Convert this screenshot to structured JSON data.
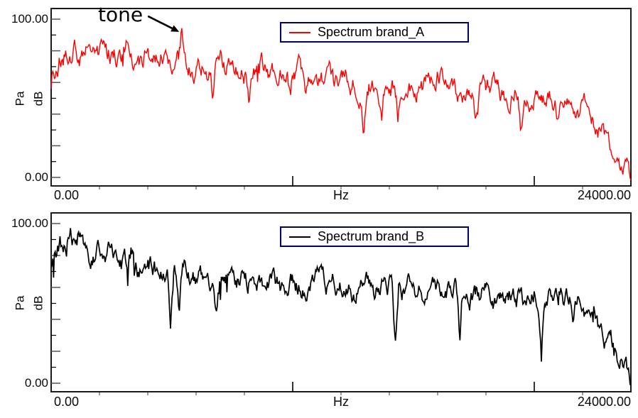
{
  "figure": {
    "background": "#ffffff",
    "text_color": "#0a0a0a"
  },
  "chart_data": [
    {
      "type": "line",
      "id": "spectrum_brand_A",
      "title": "",
      "xlabel": "Hz",
      "x_range": [
        0,
        24000
      ],
      "y_range": [
        0,
        100
      ],
      "x_minor_step": 2000,
      "x_major_step": 10000,
      "y_minor_step": 10,
      "y_major_step": 20,
      "x_tick_labels": {
        "left": "0.00",
        "right": "24000.00"
      },
      "y_tick_labels": {
        "top": "100.00",
        "bottom": "0.00"
      },
      "ylabel_units": [
        "Pa",
        "dB"
      ],
      "legend": {
        "label": "Spectrum brand_A",
        "line_color": "#fe0000",
        "border_color": "#000066"
      },
      "annotation": {
        "text": "tone",
        "target_hz": 5300,
        "target_db": 92
      },
      "series": [
        {
          "name": "Spectrum brand_A",
          "color": "#fe0000",
          "envelope": [
            [
              0,
              58
            ],
            [
              80,
              66
            ],
            [
              200,
              72
            ],
            [
              400,
              77
            ],
            [
              700,
              81
            ],
            [
              1000,
              83
            ],
            [
              1300,
              77
            ],
            [
              1600,
              81
            ],
            [
              1900,
              83
            ],
            [
              2200,
              74
            ],
            [
              2500,
              80
            ],
            [
              2800,
              74
            ],
            [
              3100,
              80
            ],
            [
              3400,
              76
            ],
            [
              3700,
              70
            ],
            [
              4000,
              77
            ],
            [
              4300,
              73
            ],
            [
              4600,
              75
            ],
            [
              4900,
              74
            ],
            [
              5150,
              78
            ],
            [
              5320,
              86
            ],
            [
              5400,
              99
            ],
            [
              5480,
              86
            ],
            [
              5650,
              77
            ],
            [
              5900,
              70
            ],
            [
              6200,
              74
            ],
            [
              6600,
              69
            ],
            [
              7000,
              74
            ],
            [
              7400,
              67
            ],
            [
              7800,
              72
            ],
            [
              8200,
              65
            ],
            [
              8600,
              70
            ],
            [
              9000,
              63
            ],
            [
              9400,
              69
            ],
            [
              9800,
              62
            ],
            [
              10300,
              67
            ],
            [
              10800,
              60
            ],
            [
              11300,
              65
            ],
            [
              11800,
              58
            ],
            [
              12300,
              63
            ],
            [
              12800,
              56
            ],
            [
              13300,
              61
            ],
            [
              13800,
              54
            ],
            [
              14300,
              59
            ],
            [
              14800,
              53
            ],
            [
              15300,
              58
            ],
            [
              15800,
              64
            ],
            [
              16100,
              70
            ],
            [
              16400,
              60
            ],
            [
              16800,
              53
            ],
            [
              17300,
              57
            ],
            [
              17800,
              51
            ],
            [
              18300,
              56
            ],
            [
              18800,
              50
            ],
            [
              19300,
              55
            ],
            [
              19800,
              49
            ],
            [
              20300,
              54
            ],
            [
              20800,
              48
            ],
            [
              21300,
              52
            ],
            [
              21800,
              47
            ],
            [
              22100,
              43
            ],
            [
              22500,
              36
            ],
            [
              22900,
              28
            ],
            [
              23300,
              19
            ],
            [
              23700,
              9
            ],
            [
              24000,
              1
            ]
          ],
          "notches": [
            [
              6700,
              -16
            ],
            [
              8200,
              -14
            ],
            [
              9900,
              -12
            ],
            [
              10530,
              -13
            ],
            [
              12940,
              -28
            ],
            [
              13680,
              -24
            ],
            [
              14350,
              -20
            ],
            [
              17600,
              -14
            ],
            [
              19440,
              -20
            ],
            [
              21000,
              -12
            ]
          ],
          "noise": {
            "seed": 41,
            "step": 5.2,
            "damp": 0.78,
            "spike_prob": 0.012,
            "spike_min": 4,
            "spike_max": 12,
            "n_points": 720
          }
        }
      ]
    },
    {
      "type": "line",
      "id": "spectrum_brand_B",
      "title": "",
      "xlabel": "Hz",
      "x_range": [
        0,
        24000
      ],
      "y_range": [
        0,
        100
      ],
      "x_minor_step": 2000,
      "x_major_step": 10000,
      "y_minor_step": 10,
      "y_major_step": 20,
      "x_tick_labels": {
        "left": "0.00",
        "right": "24000.00"
      },
      "y_tick_labels": {
        "top": "100.00",
        "bottom": "0.00"
      },
      "ylabel_units": [
        "Pa",
        "dB"
      ],
      "legend": {
        "label": "Spectrum brand_B",
        "line_color": "#000000",
        "border_color": "#000066"
      },
      "annotation": null,
      "series": [
        {
          "name": "Spectrum brand_B",
          "color": "#000000",
          "envelope": [
            [
              0,
              74
            ],
            [
              150,
              82
            ],
            [
              350,
              88
            ],
            [
              550,
              84
            ],
            [
              800,
              91
            ],
            [
              1000,
              87
            ],
            [
              1200,
              96
            ],
            [
              1400,
              88
            ],
            [
              1700,
              81
            ],
            [
              2000,
              84
            ],
            [
              2300,
              78
            ],
            [
              2600,
              81
            ],
            [
              2900,
              74
            ],
            [
              3200,
              78
            ],
            [
              3600,
              71
            ],
            [
              4000,
              75
            ],
            [
              4400,
              69
            ],
            [
              4800,
              73
            ],
            [
              5200,
              67
            ],
            [
              5600,
              71
            ],
            [
              6000,
              66
            ],
            [
              6400,
              70
            ],
            [
              6800,
              64
            ],
            [
              7200,
              68
            ],
            [
              7600,
              63
            ],
            [
              8000,
              67
            ],
            [
              8500,
              62
            ],
            [
              9000,
              66
            ],
            [
              9500,
              61
            ],
            [
              10000,
              65
            ],
            [
              10500,
              60
            ],
            [
              11000,
              64
            ],
            [
              11500,
              59
            ],
            [
              12000,
              63
            ],
            [
              12500,
              58
            ],
            [
              13000,
              62
            ],
            [
              13500,
              58
            ],
            [
              14000,
              61
            ],
            [
              14500,
              57
            ],
            [
              15000,
              60
            ],
            [
              15500,
              56
            ],
            [
              16000,
              60
            ],
            [
              16500,
              55
            ],
            [
              17000,
              59
            ],
            [
              17500,
              55
            ],
            [
              18000,
              58
            ],
            [
              18500,
              54
            ],
            [
              19000,
              57
            ],
            [
              19500,
              53
            ],
            [
              20000,
              56
            ],
            [
              20500,
              52
            ],
            [
              21000,
              55
            ],
            [
              21500,
              51
            ],
            [
              21900,
              49
            ],
            [
              22300,
              43
            ],
            [
              22700,
              35
            ],
            [
              23100,
              26
            ],
            [
              23500,
              16
            ],
            [
              23800,
              7
            ],
            [
              24000,
              -2
            ]
          ],
          "notches": [
            [
              3175,
              -20
            ],
            [
              4940,
              -30
            ],
            [
              5290,
              -24
            ],
            [
              6850,
              -16
            ],
            [
              9700,
              -12
            ],
            [
              14260,
              -32
            ],
            [
              15400,
              -14
            ],
            [
              16910,
              -30
            ],
            [
              18300,
              -12
            ],
            [
              20290,
              -40
            ],
            [
              21600,
              -14
            ]
          ],
          "noise": {
            "seed": 97,
            "step": 5.0,
            "damp": 0.78,
            "spike_prob": 0.012,
            "spike_min": 4,
            "spike_max": 12,
            "n_points": 720
          }
        }
      ]
    }
  ]
}
